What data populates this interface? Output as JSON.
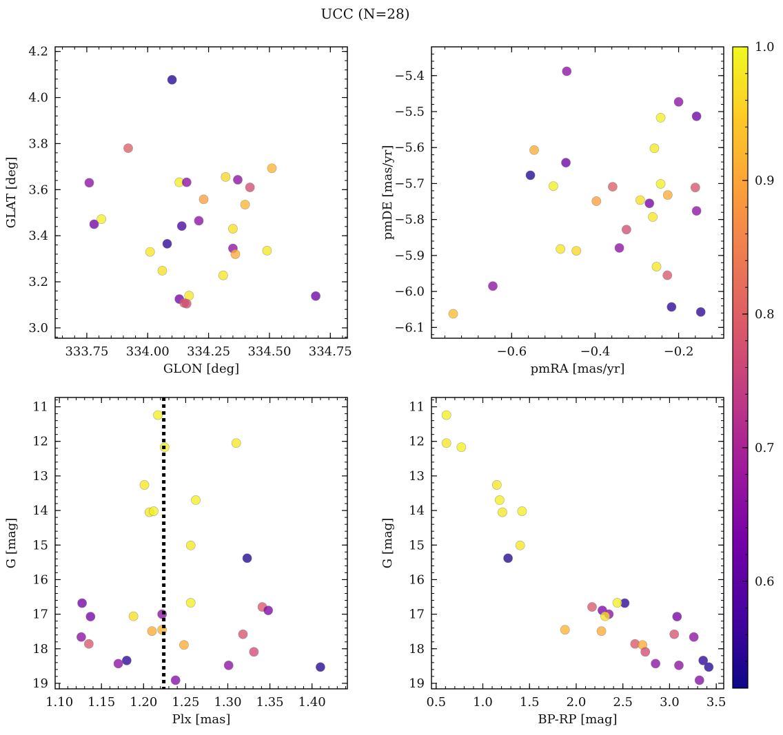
{
  "figure": {
    "title": "UCC (N=28)"
  },
  "colorbar": {
    "min": 0.52,
    "max": 1.0,
    "ticks": [
      0.6,
      0.7,
      0.8,
      0.9,
      1.0
    ],
    "tick_labels": [
      "0.6",
      "0.7",
      "0.8",
      "0.9",
      "1.0"
    ],
    "colormap": "plasma",
    "stops": [
      "#0d0887",
      "#46039f",
      "#7201a8",
      "#9c179e",
      "#bd3786",
      "#d8576b",
      "#ed7953",
      "#fb9f3a",
      "#fdca26",
      "#f0f921"
    ],
    "point_alpha": 0.78
  },
  "chart_data": [
    {
      "type": "scatter",
      "name": "sky",
      "xlabel": "GLON [deg]",
      "ylabel": "GLAT [deg]",
      "xlim": [
        333.62,
        334.82
      ],
      "ylim": [
        2.955,
        4.22
      ],
      "y_inverted": false,
      "xticks": [
        333.75,
        334.0,
        334.25,
        334.5,
        334.75
      ],
      "xtick_labels": [
        "333.75",
        "334.00",
        "334.25",
        "334.50",
        "334.75"
      ],
      "yticks": [
        3.0,
        3.2,
        3.4,
        3.6,
        3.8,
        4.0,
        4.2
      ],
      "ytick_labels": [
        "3.0",
        "3.2",
        "3.4",
        "3.6",
        "3.8",
        "4.0",
        "4.2"
      ],
      "points": [
        {
          "x": 334.1,
          "y": 4.077,
          "c": 0.54
        },
        {
          "x": 333.92,
          "y": 3.78,
          "c": 0.8
        },
        {
          "x": 333.76,
          "y": 3.63,
          "c": 0.66
        },
        {
          "x": 333.78,
          "y": 3.45,
          "c": 0.63
        },
        {
          "x": 333.81,
          "y": 3.472,
          "c": 0.99
        },
        {
          "x": 334.13,
          "y": 3.632,
          "c": 0.99
        },
        {
          "x": 334.16,
          "y": 3.632,
          "c": 0.66
        },
        {
          "x": 334.23,
          "y": 3.558,
          "c": 0.89
        },
        {
          "x": 334.32,
          "y": 3.655,
          "c": 0.96
        },
        {
          "x": 334.37,
          "y": 3.643,
          "c": 0.66
        },
        {
          "x": 334.42,
          "y": 3.61,
          "c": 0.77
        },
        {
          "x": 334.51,
          "y": 3.693,
          "c": 0.92
        },
        {
          "x": 334.4,
          "y": 3.535,
          "c": 0.92
        },
        {
          "x": 334.14,
          "y": 3.442,
          "c": 0.58
        },
        {
          "x": 334.21,
          "y": 3.465,
          "c": 0.66
        },
        {
          "x": 334.35,
          "y": 3.43,
          "c": 0.97
        },
        {
          "x": 334.08,
          "y": 3.365,
          "c": 0.55
        },
        {
          "x": 334.01,
          "y": 3.33,
          "c": 0.98
        },
        {
          "x": 334.35,
          "y": 3.345,
          "c": 0.66
        },
        {
          "x": 334.36,
          "y": 3.32,
          "c": 0.91
        },
        {
          "x": 334.49,
          "y": 3.335,
          "c": 0.98
        },
        {
          "x": 334.06,
          "y": 3.248,
          "c": 0.97
        },
        {
          "x": 334.31,
          "y": 3.228,
          "c": 0.98
        },
        {
          "x": 334.17,
          "y": 3.14,
          "c": 0.98
        },
        {
          "x": 334.13,
          "y": 3.125,
          "c": 0.63
        },
        {
          "x": 334.15,
          "y": 3.108,
          "c": 0.79
        },
        {
          "x": 334.16,
          "y": 3.105,
          "c": 0.77
        },
        {
          "x": 334.69,
          "y": 3.138,
          "c": 0.62
        }
      ]
    },
    {
      "type": "scatter",
      "name": "proper-motion",
      "xlabel": "pmRA [mas/yr]",
      "ylabel": "pmDE [mas/yr]",
      "xlim": [
        -0.792,
        -0.092
      ],
      "ylim": [
        -6.13,
        -5.32
      ],
      "y_inverted": false,
      "xticks": [
        -0.6,
        -0.4,
        -0.2
      ],
      "xtick_labels": [
        "−0.6",
        "−0.4",
        "−0.2"
      ],
      "yticks": [
        -6.1,
        -6.0,
        -5.9,
        -5.8,
        -5.7,
        -5.6,
        -5.5,
        -5.4
      ],
      "ytick_labels": [
        "−6.1",
        "−6.0",
        "−5.9",
        "−5.8",
        "−5.7",
        "−5.6",
        "−5.5",
        "−5.4"
      ],
      "points": [
        {
          "x": -0.468,
          "y": -5.388,
          "c": 0.66
        },
        {
          "x": -0.2,
          "y": -5.473,
          "c": 0.66
        },
        {
          "x": -0.157,
          "y": -5.513,
          "c": 0.62
        },
        {
          "x": -0.243,
          "y": -5.517,
          "c": 0.99
        },
        {
          "x": -0.546,
          "y": -5.607,
          "c": 0.91
        },
        {
          "x": -0.258,
          "y": -5.602,
          "c": 0.98
        },
        {
          "x": -0.47,
          "y": -5.642,
          "c": 0.62
        },
        {
          "x": -0.555,
          "y": -5.677,
          "c": 0.54
        },
        {
          "x": -0.5,
          "y": -5.707,
          "c": 0.99
        },
        {
          "x": -0.358,
          "y": -5.709,
          "c": 0.8
        },
        {
          "x": -0.243,
          "y": -5.701,
          "c": 0.99
        },
        {
          "x": -0.16,
          "y": -5.711,
          "c": 0.78
        },
        {
          "x": -0.226,
          "y": -5.732,
          "c": 0.91
        },
        {
          "x": -0.397,
          "y": -5.749,
          "c": 0.89
        },
        {
          "x": -0.292,
          "y": -5.746,
          "c": 0.97
        },
        {
          "x": -0.27,
          "y": -5.755,
          "c": 0.63
        },
        {
          "x": -0.157,
          "y": -5.776,
          "c": 0.66
        },
        {
          "x": -0.262,
          "y": -5.793,
          "c": 0.98
        },
        {
          "x": -0.325,
          "y": -5.828,
          "c": 0.77
        },
        {
          "x": -0.483,
          "y": -5.882,
          "c": 0.98
        },
        {
          "x": -0.445,
          "y": -5.887,
          "c": 0.96
        },
        {
          "x": -0.342,
          "y": -5.879,
          "c": 0.66
        },
        {
          "x": -0.253,
          "y": -5.931,
          "c": 0.98
        },
        {
          "x": -0.227,
          "y": -5.955,
          "c": 0.79
        },
        {
          "x": -0.645,
          "y": -5.985,
          "c": 0.66
        },
        {
          "x": -0.217,
          "y": -6.043,
          "c": 0.55
        },
        {
          "x": -0.147,
          "y": -6.057,
          "c": 0.55
        },
        {
          "x": -0.74,
          "y": -6.062,
          "c": 0.93
        }
      ]
    },
    {
      "type": "scatter",
      "name": "parallax-magnitude",
      "xlabel": "Plx [mas]",
      "ylabel": "G [mag]",
      "xlim": [
        1.095,
        1.442
      ],
      "ylim": [
        10.73,
        19.16
      ],
      "y_inverted": true,
      "vline": {
        "x": 1.224,
        "style": "dotted",
        "color": "#000000"
      },
      "xticks": [
        1.1,
        1.15,
        1.2,
        1.25,
        1.3,
        1.35,
        1.4
      ],
      "xtick_labels": [
        "1.10",
        "1.15",
        "1.20",
        "1.25",
        "1.30",
        "1.35",
        "1.40"
      ],
      "yticks": [
        11,
        12,
        13,
        14,
        15,
        16,
        17,
        18,
        19
      ],
      "ytick_labels": [
        "11",
        "12",
        "13",
        "14",
        "15",
        "16",
        "17",
        "18",
        "19"
      ],
      "points": [
        {
          "x": 1.217,
          "y": 11.24,
          "c": 0.99
        },
        {
          "x": 1.225,
          "y": 12.17,
          "c": 0.99
        },
        {
          "x": 1.31,
          "y": 12.05,
          "c": 0.98
        },
        {
          "x": 1.201,
          "y": 13.26,
          "c": 0.98
        },
        {
          "x": 1.262,
          "y": 13.7,
          "c": 0.99
        },
        {
          "x": 1.207,
          "y": 14.05,
          "c": 0.98
        },
        {
          "x": 1.212,
          "y": 14.02,
          "c": 0.99
        },
        {
          "x": 1.256,
          "y": 15.01,
          "c": 0.98
        },
        {
          "x": 1.323,
          "y": 15.38,
          "c": 0.54
        },
        {
          "x": 1.127,
          "y": 16.68,
          "c": 0.63
        },
        {
          "x": 1.256,
          "y": 16.67,
          "c": 0.99
        },
        {
          "x": 1.341,
          "y": 16.79,
          "c": 0.79
        },
        {
          "x": 1.348,
          "y": 16.89,
          "c": 0.64
        },
        {
          "x": 1.137,
          "y": 17.07,
          "c": 0.63
        },
        {
          "x": 1.188,
          "y": 17.06,
          "c": 0.97
        },
        {
          "x": 1.222,
          "y": 17.0,
          "c": 0.66
        },
        {
          "x": 1.21,
          "y": 17.49,
          "c": 0.91
        },
        {
          "x": 1.222,
          "y": 17.45,
          "c": 0.92
        },
        {
          "x": 1.318,
          "y": 17.58,
          "c": 0.78
        },
        {
          "x": 1.126,
          "y": 17.66,
          "c": 0.66
        },
        {
          "x": 1.135,
          "y": 17.86,
          "c": 0.79
        },
        {
          "x": 1.248,
          "y": 17.89,
          "c": 0.91
        },
        {
          "x": 1.331,
          "y": 18.09,
          "c": 0.77
        },
        {
          "x": 1.17,
          "y": 18.43,
          "c": 0.66
        },
        {
          "x": 1.18,
          "y": 18.34,
          "c": 0.55
        },
        {
          "x": 1.301,
          "y": 18.48,
          "c": 0.66
        },
        {
          "x": 1.41,
          "y": 18.53,
          "c": 0.54
        },
        {
          "x": 1.238,
          "y": 18.91,
          "c": 0.65
        }
      ]
    },
    {
      "type": "scatter",
      "name": "color-magnitude",
      "xlabel": "BP-RP [mag]",
      "ylabel": "G [mag]",
      "xlim": [
        0.45,
        3.58
      ],
      "ylim": [
        10.73,
        19.16
      ],
      "y_inverted": true,
      "xticks": [
        0.5,
        1.0,
        1.5,
        2.0,
        2.5,
        3.0,
        3.5
      ],
      "xtick_labels": [
        "0.5",
        "1.0",
        "1.5",
        "2.0",
        "2.5",
        "3.0",
        "3.5"
      ],
      "yticks": [
        11,
        12,
        13,
        14,
        15,
        16,
        17,
        18,
        19
      ],
      "ytick_labels": [
        "11",
        "12",
        "13",
        "14",
        "15",
        "16",
        "17",
        "18",
        "19"
      ],
      "points": [
        {
          "x": 0.61,
          "y": 11.24,
          "c": 0.99
        },
        {
          "x": 0.61,
          "y": 12.05,
          "c": 0.98
        },
        {
          "x": 0.77,
          "y": 12.17,
          "c": 0.99
        },
        {
          "x": 1.15,
          "y": 13.26,
          "c": 0.98
        },
        {
          "x": 1.18,
          "y": 13.7,
          "c": 0.99
        },
        {
          "x": 1.21,
          "y": 14.05,
          "c": 0.98
        },
        {
          "x": 1.42,
          "y": 14.02,
          "c": 0.99
        },
        {
          "x": 1.4,
          "y": 15.01,
          "c": 0.98
        },
        {
          "x": 1.27,
          "y": 15.38,
          "c": 0.54
        },
        {
          "x": 2.52,
          "y": 16.68,
          "c": 0.55
        },
        {
          "x": 2.44,
          "y": 16.67,
          "c": 0.99
        },
        {
          "x": 2.17,
          "y": 16.79,
          "c": 0.79
        },
        {
          "x": 2.28,
          "y": 16.89,
          "c": 0.64
        },
        {
          "x": 2.35,
          "y": 17.0,
          "c": 0.66
        },
        {
          "x": 2.31,
          "y": 17.06,
          "c": 0.97
        },
        {
          "x": 3.08,
          "y": 17.07,
          "c": 0.63
        },
        {
          "x": 1.88,
          "y": 17.45,
          "c": 0.92
        },
        {
          "x": 2.27,
          "y": 17.49,
          "c": 0.91
        },
        {
          "x": 3.05,
          "y": 17.58,
          "c": 0.78
        },
        {
          "x": 3.26,
          "y": 17.66,
          "c": 0.66
        },
        {
          "x": 2.63,
          "y": 17.86,
          "c": 0.79
        },
        {
          "x": 2.71,
          "y": 17.89,
          "c": 0.91
        },
        {
          "x": 2.74,
          "y": 18.09,
          "c": 0.77
        },
        {
          "x": 2.85,
          "y": 18.43,
          "c": 0.66
        },
        {
          "x": 3.36,
          "y": 18.34,
          "c": 0.55
        },
        {
          "x": 3.1,
          "y": 18.48,
          "c": 0.66
        },
        {
          "x": 3.42,
          "y": 18.53,
          "c": 0.54
        },
        {
          "x": 3.32,
          "y": 18.91,
          "c": 0.65
        }
      ]
    }
  ]
}
